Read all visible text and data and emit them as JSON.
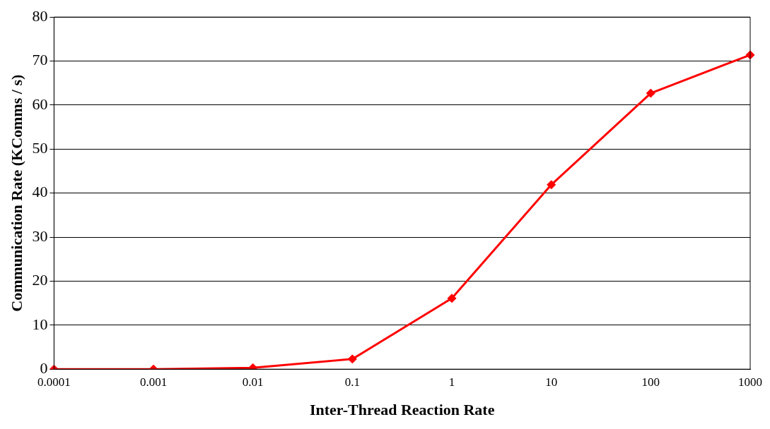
{
  "chart_data": {
    "type": "line",
    "xlabel": "Inter-Thread Reaction Rate",
    "ylabel": "Communication Rate (KComms / s)",
    "categories": [
      "0.0001",
      "0.001",
      "0.01",
      "0.1",
      "1",
      "10",
      "100",
      "1000"
    ],
    "series": [
      {
        "color": "#ff0000",
        "values": [
          0,
          0,
          0.3,
          2.3,
          16.1,
          41.9,
          62.7,
          71.4
        ]
      }
    ],
    "ylim": [
      0,
      80
    ],
    "yticks": [
      0,
      10,
      20,
      30,
      40,
      50,
      60,
      70,
      80
    ],
    "grid": "y",
    "legend": false,
    "marker": "diamond",
    "line_style": "solid"
  }
}
